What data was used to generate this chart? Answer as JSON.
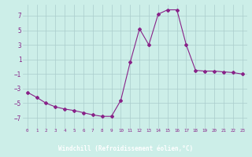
{
  "x": [
    0,
    1,
    2,
    3,
    4,
    5,
    6,
    7,
    8,
    9,
    10,
    11,
    12,
    13,
    14,
    15,
    16,
    17,
    18,
    19,
    20,
    21,
    22,
    23
  ],
  "y": [
    -3.5,
    -4.2,
    -5.0,
    -5.5,
    -5.8,
    -6.0,
    -6.3,
    -6.6,
    -6.8,
    -6.8,
    -4.6,
    0.6,
    5.2,
    3.0,
    7.2,
    7.8,
    7.8,
    3.0,
    -0.5,
    -0.6,
    -0.6,
    -0.7,
    -0.8,
    -1.0
  ],
  "line_color": "#882288",
  "marker": "D",
  "marker_size": 2,
  "bg_color": "#cceee8",
  "grid_color": "#aacccc",
  "xlabel": "Windchill (Refroidissement éolien,°C)",
  "xlabel_bg": "#7755aa",
  "tick_color": "#882288",
  "ylim": [
    -8.5,
    8.5
  ],
  "yticks": [
    -7,
    -5,
    -3,
    -1,
    1,
    3,
    5,
    7
  ],
  "xlim": [
    -0.5,
    23.5
  ],
  "xticks": [
    0,
    1,
    2,
    3,
    4,
    5,
    6,
    7,
    8,
    9,
    10,
    11,
    12,
    13,
    14,
    15,
    16,
    17,
    18,
    19,
    20,
    21,
    22,
    23
  ]
}
